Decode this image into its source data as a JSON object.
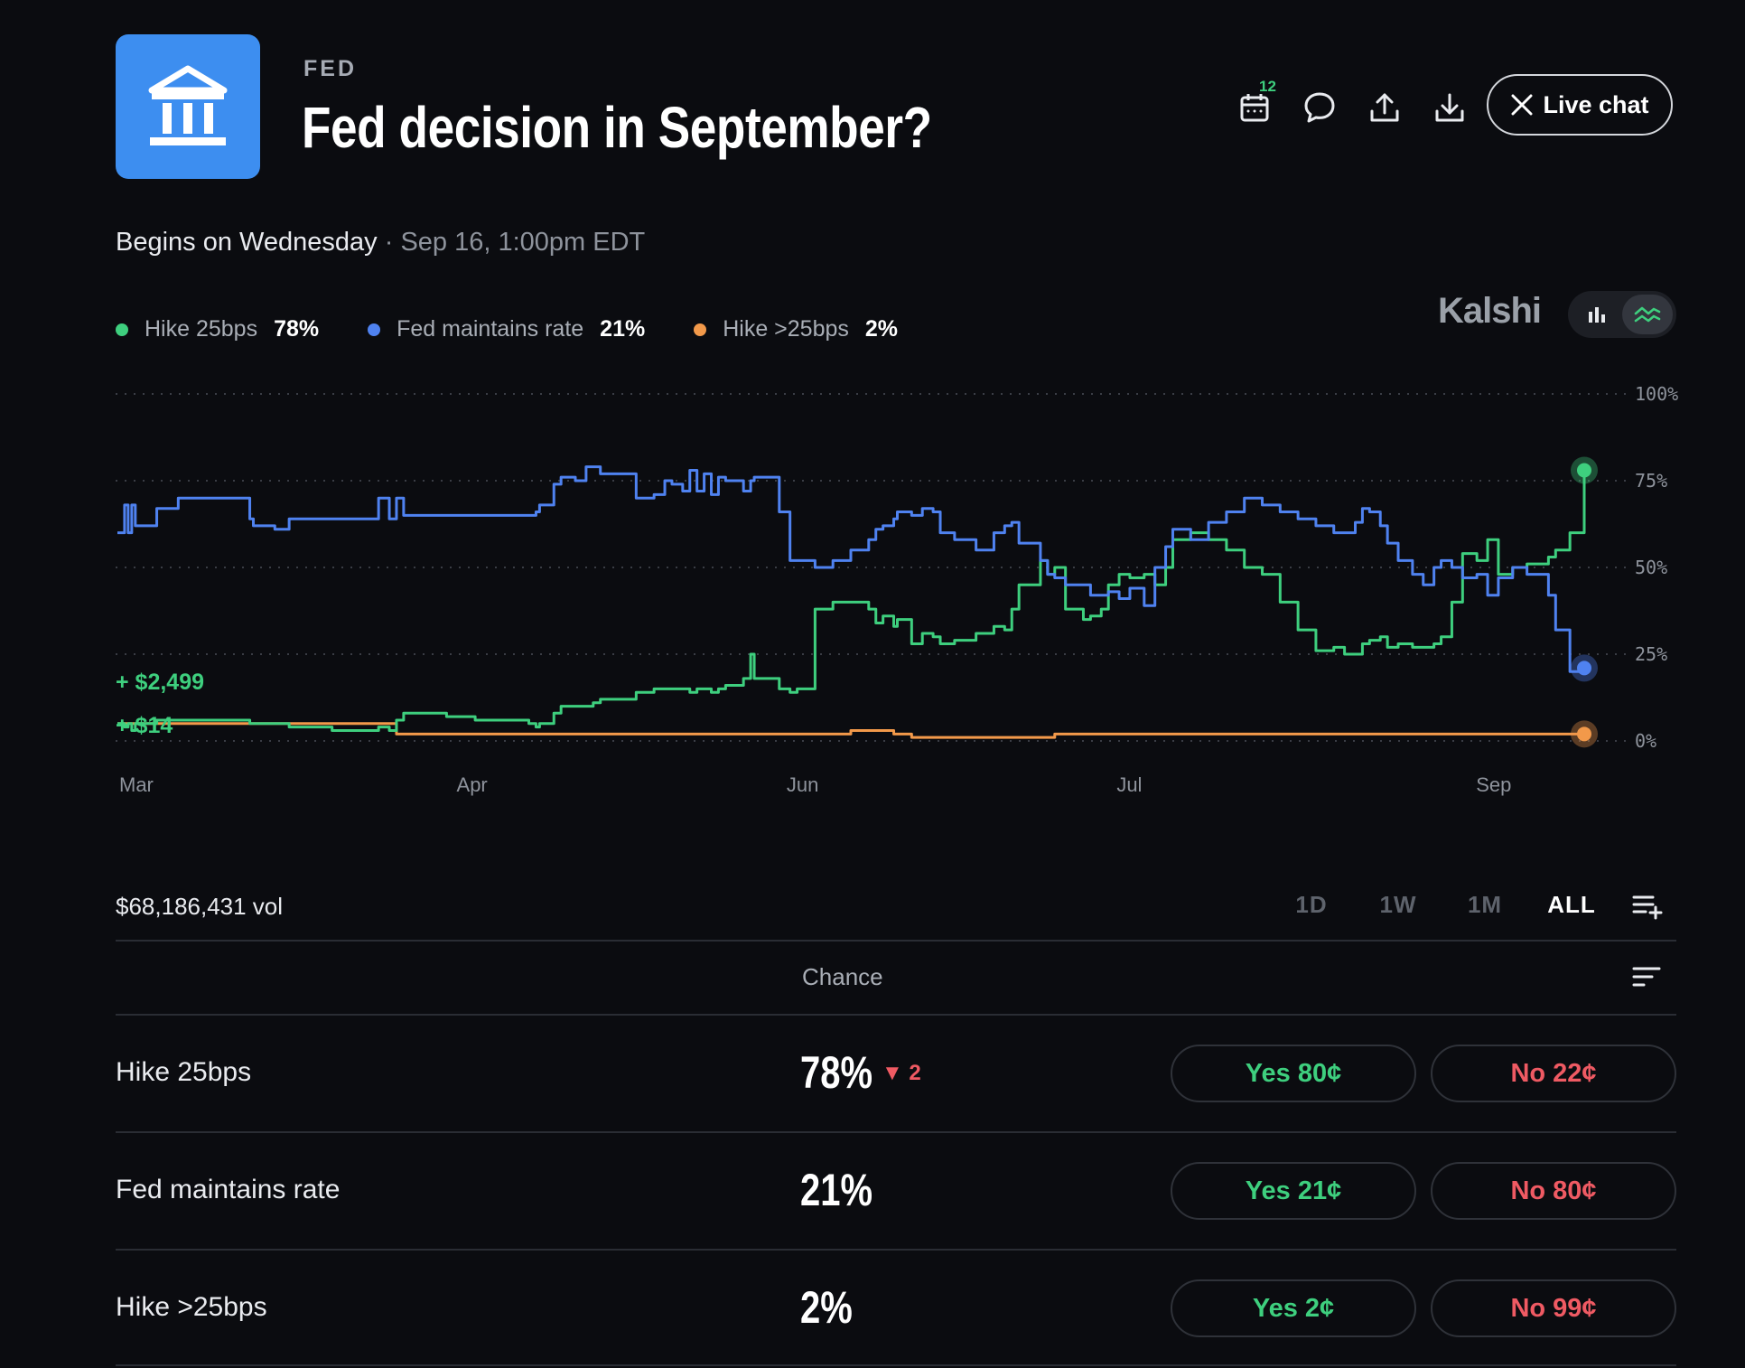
{
  "header": {
    "category": "FED",
    "title": "Fed decision in September?",
    "icon": "bank-building-icon",
    "calendar_badge": "12",
    "live_chat_label": "Live chat"
  },
  "event": {
    "begins": "Begins on Wednesday",
    "separator": " · ",
    "datetime": "Sep 16, 1:00pm EDT"
  },
  "legend": [
    {
      "name": "Hike 25bps",
      "value": "78%",
      "color": "#3ecf7e"
    },
    {
      "name": "Fed maintains rate",
      "value": "21%",
      "color": "#4f82f0"
    },
    {
      "name": "Hike >25bps",
      "value": "2%",
      "color": "#f2994a"
    }
  ],
  "brand": "Kalshi",
  "chart_data": {
    "type": "line",
    "y_ticks": [
      "100%",
      "75%",
      "50%",
      "25%",
      "0%"
    ],
    "x_ticks": [
      "Mar",
      "Apr",
      "Jun",
      "Jul",
      "Sep"
    ],
    "ylim": [
      0,
      100
    ],
    "grid": true,
    "legend_position": "top-left",
    "annotations": [
      "+ $2,499",
      "+ $14"
    ],
    "x": [
      0,
      2,
      3,
      4,
      5,
      10,
      11,
      17,
      20,
      35,
      37,
      38,
      44,
      48,
      60,
      70,
      73,
      76,
      78,
      80,
      90,
      92,
      100,
      115,
      117,
      118,
      122,
      124,
      128,
      131,
      133,
      135,
      145,
      150,
      153,
      155,
      158,
      160,
      162,
      164,
      166,
      168,
      170,
      175,
      177,
      178,
      185,
      188,
      190,
      195,
      200,
      205,
      210,
      212,
      214,
      217,
      218,
      222,
      225,
      228,
      230,
      234,
      236,
      240,
      245,
      248,
      250,
      252,
      258,
      260,
      262,
      265,
      270,
      272,
      275,
      277,
      280,
      283,
      287,
      290,
      293,
      295,
      300,
      305,
      310,
      315,
      320,
      325,
      330,
      335,
      340,
      343,
      346,
      348,
      350,
      353,
      355,
      358,
      362,
      365,
      368,
      370,
      373,
      376,
      380,
      383,
      386,
      390,
      394,
      398,
      400,
      402,
      406,
      410
    ],
    "series": [
      {
        "name": "Hike 25bps",
        "values": [
          5,
          4,
          5,
          3,
          5,
          5,
          6,
          6,
          6,
          6,
          5,
          5,
          5,
          4,
          3,
          3,
          4,
          3,
          6,
          8,
          8,
          7,
          6,
          5,
          4,
          5,
          8,
          10,
          10,
          10,
          11,
          12,
          14,
          15,
          15,
          15,
          15,
          14,
          15,
          15,
          14,
          15,
          16,
          18,
          25,
          18,
          15,
          14,
          15,
          38,
          40,
          40,
          38,
          34,
          36,
          33,
          35,
          28,
          31,
          30,
          28,
          29,
          29,
          31,
          33,
          32,
          38,
          45,
          52,
          48,
          50,
          38,
          35,
          36,
          38,
          45,
          48,
          47,
          48,
          45,
          50,
          58,
          60,
          58,
          55,
          50,
          48,
          40,
          32,
          26,
          27,
          25,
          25,
          28,
          29,
          30,
          27,
          28,
          27,
          27,
          28,
          30,
          40,
          54,
          52,
          58,
          48,
          50,
          51,
          51,
          53,
          55,
          60,
          78
        ]
      },
      {
        "name": "Fed maintains rate",
        "values": [
          60,
          68,
          60,
          68,
          62,
          62,
          67,
          70,
          70,
          70,
          64,
          62,
          61,
          64,
          64,
          64,
          70,
          64,
          70,
          65,
          65,
          65,
          65,
          65,
          66,
          68,
          74,
          76,
          75,
          79,
          79,
          77,
          70,
          71,
          75,
          74,
          72,
          78,
          72,
          77,
          71,
          76,
          75,
          72,
          75,
          76,
          66,
          52,
          52,
          50,
          52,
          55,
          58,
          61,
          62,
          64,
          66,
          65,
          67,
          66,
          60,
          58,
          58,
          55,
          60,
          62,
          63,
          57,
          52,
          48,
          47,
          45,
          45,
          42,
          42,
          43,
          41,
          44,
          39,
          50,
          56,
          61,
          58,
          63,
          66,
          70,
          68,
          66,
          64,
          62,
          60,
          60,
          63,
          67,
          66,
          62,
          57,
          52,
          48,
          45,
          50,
          52,
          50,
          47,
          48,
          42,
          47,
          50,
          48,
          48,
          42,
          32,
          20,
          21
        ]
      },
      {
        "name": "Hike >25bps",
        "values": [
          5,
          5,
          5,
          5,
          5,
          5,
          5,
          5,
          5,
          5,
          5,
          5,
          5,
          5,
          5,
          5,
          5,
          5,
          2,
          2,
          2,
          2,
          2,
          2,
          2,
          2,
          2,
          2,
          2,
          2,
          2,
          2,
          2,
          2,
          2,
          2,
          2,
          2,
          2,
          2,
          2,
          2,
          2,
          2,
          2,
          2,
          2,
          2,
          2,
          2,
          2,
          3,
          3,
          3,
          3,
          2,
          2,
          1,
          1,
          1,
          1,
          1,
          1,
          1,
          1,
          1,
          1,
          1,
          1,
          1,
          2,
          2,
          2,
          2,
          2,
          2,
          2,
          2,
          2,
          2,
          2,
          2,
          2,
          2,
          2,
          2,
          2,
          2,
          2,
          2,
          2,
          2,
          2,
          2,
          2,
          2,
          2,
          2,
          2,
          2,
          2,
          2,
          2,
          2,
          2,
          2,
          2,
          2,
          2,
          2,
          2,
          2,
          2,
          2
        ]
      }
    ]
  },
  "volume": "$68,186,431 vol",
  "ranges": [
    "1D",
    "1W",
    "1M",
    "ALL"
  ],
  "active_range": "ALL",
  "table": {
    "column_header": "Chance",
    "rows": [
      {
        "name": "Hike 25bps",
        "chance": "78%",
        "change": "▼ 2",
        "yes": "Yes 80¢",
        "no": "No 22¢"
      },
      {
        "name": "Fed maintains rate",
        "chance": "21%",
        "change": "",
        "yes": "Yes 21¢",
        "no": "No 80¢"
      },
      {
        "name": "Hike >25bps",
        "chance": "2%",
        "change": "",
        "yes": "Yes 2¢",
        "no": "No 99¢"
      }
    ]
  }
}
